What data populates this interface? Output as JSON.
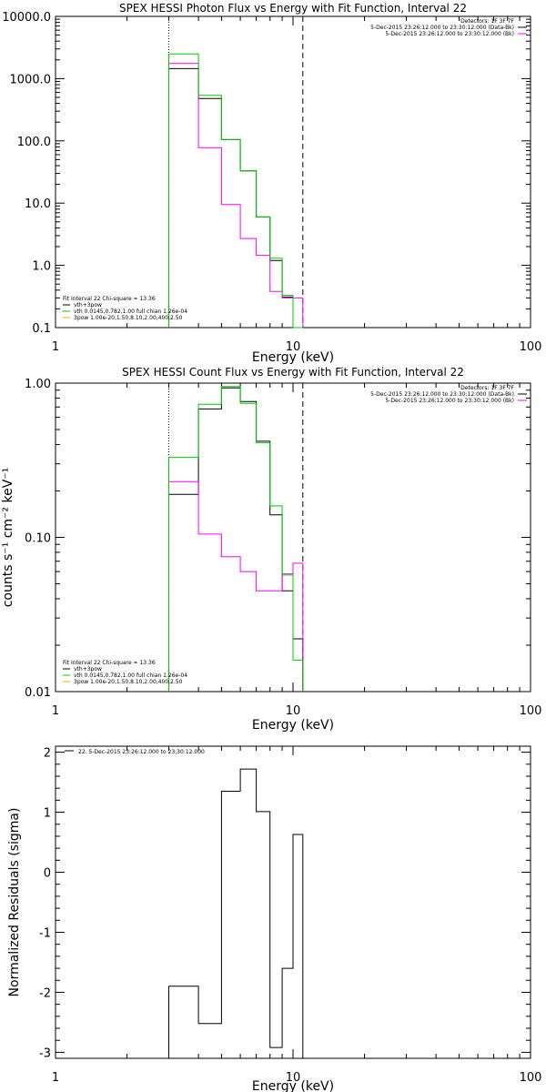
{
  "chart_data": [
    {
      "type": "line",
      "title": "SPEX HESSI Photon Flux vs Energy with Fit Function, Interval 22",
      "xlabel": "Energy (keV)",
      "ylabel": "",
      "xscale": "log",
      "yscale": "log",
      "xlim": [
        1,
        100
      ],
      "ylim": [
        0.1,
        10000
      ],
      "x_ticks": [
        1,
        10,
        100
      ],
      "x_tick_labels": [
        "1",
        "10",
        "100"
      ],
      "y_ticks": [
        0.1,
        1,
        10,
        100,
        1000,
        10000
      ],
      "y_tick_labels": [
        "0.1",
        "1.0",
        "10.0",
        "100.0",
        "1000.0",
        "10000.0"
      ],
      "vlines": [
        {
          "x": 3.0,
          "style": "dotted"
        },
        {
          "x": 11.0,
          "style": "dashed"
        }
      ],
      "bin_edges": [
        3.0,
        4.0,
        5.0,
        6.0,
        7.0,
        8.0,
        9.0,
        10.0,
        11.0
      ],
      "series": [
        {
          "color": "#000000",
          "values": [
            1450,
            480,
            105,
            33,
            6.0,
            1.2,
            0.31,
            0.08
          ]
        },
        {
          "color": "#ff00ff",
          "values": [
            1750,
            78,
            9.5,
            2.7,
            1.45,
            0.38,
            0.3,
            0.3
          ]
        },
        {
          "color": "#00cc00",
          "values": [
            2500,
            540,
            105,
            33,
            6.0,
            1.3,
            0.33,
            0.08
          ]
        }
      ],
      "legend_top": [
        "Detectors: 1F 3F 7F",
        "5-Dec-2015 23:26:12.000 to 23:30:12.000 (Data-Bk)",
        "5-Dec-2015 23:26:12.000 to 23:30:12.000 (Bk)"
      ],
      "legend_bottom": [
        "Fit Interval 22   Chi-square = 13.36",
        "vth+3pow",
        "vth 0.0145,0.782,1.00  full chian 1.26e-04",
        "3pow 1.00e-20,1.50,8.10,2.00,400,2.50"
      ],
      "legend_top_colors": [
        "",
        "#000000",
        "#ff00ff"
      ],
      "legend_bottom_colors": [
        "",
        "#000000",
        "#00cc00",
        "#ffa500"
      ]
    },
    {
      "type": "line",
      "title": "SPEX HESSI Count Flux vs Energy with Fit Function, Interval 22",
      "xlabel": "Energy (keV)",
      "ylabel": "counts s⁻¹ cm⁻² keV⁻¹",
      "xscale": "log",
      "yscale": "log",
      "xlim": [
        1,
        100
      ],
      "ylim": [
        0.01,
        1.0
      ],
      "x_ticks": [
        1,
        10,
        100
      ],
      "x_tick_labels": [
        "1",
        "10",
        "100"
      ],
      "y_ticks": [
        0.01,
        0.1,
        1.0
      ],
      "y_tick_labels": [
        "0.01",
        "0.10",
        "1.00"
      ],
      "vlines": [
        {
          "x": 3.0,
          "style": "dotted"
        },
        {
          "x": 11.0,
          "style": "dashed"
        }
      ],
      "bin_edges": [
        3.0,
        4.0,
        5.0,
        6.0,
        7.0,
        8.0,
        9.0,
        10.0,
        11.0
      ],
      "series": [
        {
          "color": "#000000",
          "values": [
            0.19,
            0.68,
            0.93,
            0.76,
            0.42,
            0.14,
            0.045,
            0.022
          ]
        },
        {
          "color": "#ff00ff",
          "values": [
            0.23,
            0.105,
            0.075,
            0.06,
            0.045,
            0.045,
            0.058,
            0.068
          ]
        },
        {
          "color": "#00cc00",
          "values": [
            0.33,
            0.73,
            0.95,
            0.74,
            0.41,
            0.16,
            0.057,
            0.016
          ]
        }
      ],
      "legend_top": [
        "Detectors: 1F 3F 7F",
        "5-Dec-2015 23:26:12.000 to 23:30:12.000 (Data-Bk)",
        "5-Dec-2015 23:26:12.000 to 23:30:12.000 (Bk)"
      ],
      "legend_bottom": [
        "Fit Interval 22   Chi-square = 13.36",
        "vth+3pow",
        "vth 0.0145,0.782,1.00  full chian 1.26e-04",
        "3pow 1.00e-20,1.50,8.10,2.00,400,2.50"
      ],
      "legend_top_colors": [
        "",
        "#000000",
        "#ff00ff"
      ],
      "legend_bottom_colors": [
        "",
        "#000000",
        "#00cc00",
        "#ffa500"
      ]
    },
    {
      "type": "line",
      "title": "",
      "xlabel": "Energy (keV)",
      "ylabel": "Normalized Residuals (sigma)",
      "xscale": "log",
      "yscale": "linear",
      "xlim": [
        1,
        100
      ],
      "ylim": [
        -3.1,
        2.1
      ],
      "x_ticks": [
        1,
        10,
        100
      ],
      "x_tick_labels": [
        "1",
        "10",
        "100"
      ],
      "y_ticks": [
        -3,
        -2,
        -1,
        0,
        1,
        2
      ],
      "y_tick_labels": [
        "-3",
        "-2",
        "-1",
        "0",
        "1",
        "2"
      ],
      "vlines": [],
      "bin_edges": [
        3.0,
        4.0,
        5.0,
        6.0,
        7.0,
        8.0,
        9.0,
        10.0,
        11.0
      ],
      "series": [
        {
          "color": "#000000",
          "values": [
            -1.9,
            -2.52,
            1.35,
            1.72,
            1.01,
            -2.92,
            -1.6,
            0.63
          ]
        }
      ],
      "legend_top": [
        "22.  5-Dec-2015 23:26:12.000 to 23:30:12.000"
      ],
      "legend_bottom": [],
      "legend_top_colors": [
        "#000000"
      ],
      "legend_bottom_colors": []
    }
  ]
}
